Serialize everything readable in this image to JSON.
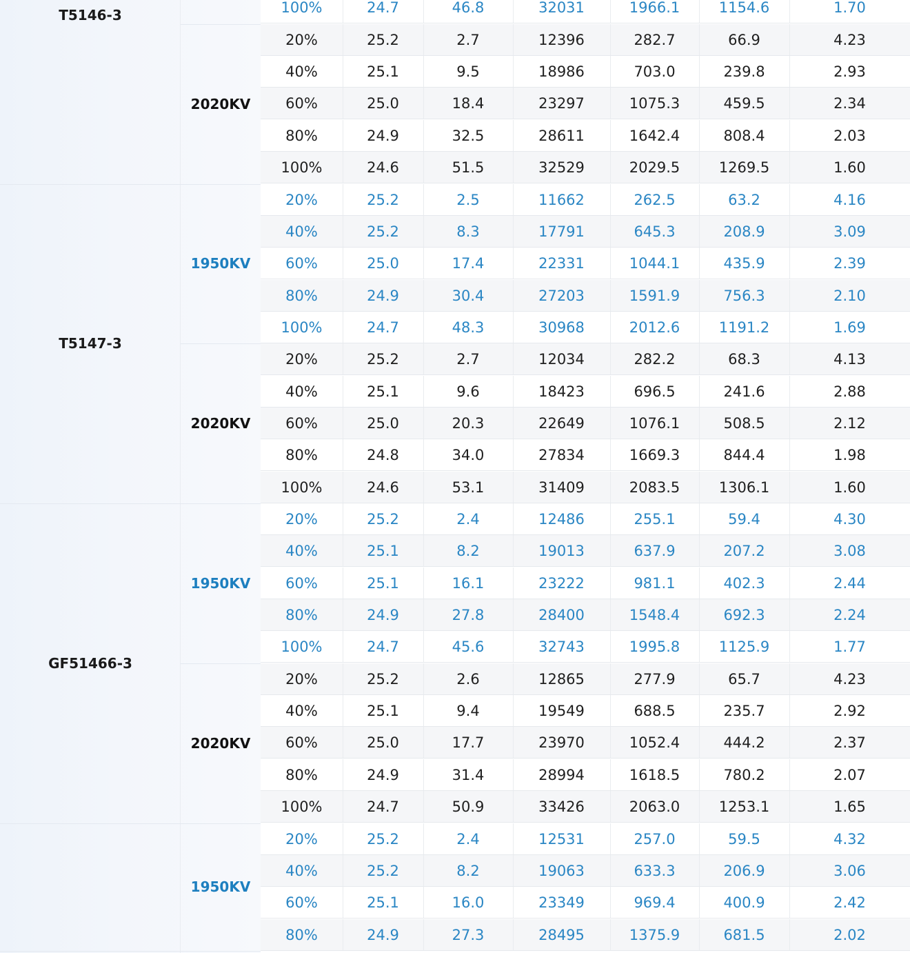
{
  "groups": [
    {
      "model": "T5146-3",
      "sections": [
        {
          "voltage": "",
          "color": "blue",
          "rows": [
            [
              "100%",
              "24.7",
              "46.8",
              "32031",
              "1966.1",
              "1154.6",
              "1.70"
            ]
          ]
        },
        {
          "voltage": "2020KV",
          "color": "black",
          "rows": [
            [
              "20%",
              "25.2",
              "2.7",
              "12396",
              "282.7",
              "66.9",
              "4.23"
            ],
            [
              "40%",
              "25.1",
              "9.5",
              "18986",
              "703.0",
              "239.8",
              "2.93"
            ],
            [
              "60%",
              "25.0",
              "18.4",
              "23297",
              "1075.3",
              "459.5",
              "2.34"
            ],
            [
              "80%",
              "24.9",
              "32.5",
              "28611",
              "1642.4",
              "808.4",
              "2.03"
            ],
            [
              "100%",
              "24.6",
              "51.5",
              "32529",
              "2029.5",
              "1269.5",
              "1.60"
            ]
          ]
        }
      ]
    },
    {
      "model": "T5147-3",
      "sections": [
        {
          "voltage": "1950KV",
          "color": "blue",
          "rows": [
            [
              "20%",
              "25.2",
              "2.5",
              "11662",
              "262.5",
              "63.2",
              "4.16"
            ],
            [
              "40%",
              "25.2",
              "8.3",
              "17791",
              "645.3",
              "208.9",
              "3.09"
            ],
            [
              "60%",
              "25.0",
              "17.4",
              "22331",
              "1044.1",
              "435.9",
              "2.39"
            ],
            [
              "80%",
              "24.9",
              "30.4",
              "27203",
              "1591.9",
              "756.3",
              "2.10"
            ],
            [
              "100%",
              "24.7",
              "48.3",
              "30968",
              "2012.6",
              "1191.2",
              "1.69"
            ]
          ]
        },
        {
          "voltage": "2020KV",
          "color": "black",
          "rows": [
            [
              "20%",
              "25.2",
              "2.7",
              "12034",
              "282.2",
              "68.3",
              "4.13"
            ],
            [
              "40%",
              "25.1",
              "9.6",
              "18423",
              "696.5",
              "241.6",
              "2.88"
            ],
            [
              "60%",
              "25.0",
              "20.3",
              "22649",
              "1076.1",
              "508.5",
              "2.12"
            ],
            [
              "80%",
              "24.8",
              "34.0",
              "27834",
              "1669.3",
              "844.4",
              "1.98"
            ],
            [
              "100%",
              "24.6",
              "53.1",
              "31409",
              "2083.5",
              "1306.1",
              "1.60"
            ]
          ]
        }
      ]
    },
    {
      "model": "GF51466-3",
      "sections": [
        {
          "voltage": "1950KV",
          "color": "blue",
          "rows": [
            [
              "20%",
              "25.2",
              "2.4",
              "12486",
              "255.1",
              "59.4",
              "4.30"
            ],
            [
              "40%",
              "25.1",
              "8.2",
              "19013",
              "637.9",
              "207.2",
              "3.08"
            ],
            [
              "60%",
              "25.1",
              "16.1",
              "23222",
              "981.1",
              "402.3",
              "2.44"
            ],
            [
              "80%",
              "24.9",
              "27.8",
              "28400",
              "1548.4",
              "692.3",
              "2.24"
            ],
            [
              "100%",
              "24.7",
              "45.6",
              "32743",
              "1995.8",
              "1125.9",
              "1.77"
            ]
          ]
        },
        {
          "voltage": "2020KV",
          "color": "black",
          "rows": [
            [
              "20%",
              "25.2",
              "2.6",
              "12865",
              "277.9",
              "65.7",
              "4.23"
            ],
            [
              "40%",
              "25.1",
              "9.4",
              "19549",
              "688.5",
              "235.7",
              "2.92"
            ],
            [
              "60%",
              "25.0",
              "17.7",
              "23970",
              "1052.4",
              "444.2",
              "2.37"
            ],
            [
              "80%",
              "24.9",
              "31.4",
              "28994",
              "1618.5",
              "780.2",
              "2.07"
            ],
            [
              "100%",
              "24.7",
              "50.9",
              "33426",
              "2063.0",
              "1253.1",
              "1.65"
            ]
          ]
        }
      ]
    },
    {
      "model": "",
      "sections": [
        {
          "voltage": "1950KV",
          "color": "blue",
          "rows": [
            [
              "20%",
              "25.2",
              "2.4",
              "12531",
              "257.0",
              "59.5",
              "4.32"
            ],
            [
              "40%",
              "25.2",
              "8.2",
              "19063",
              "633.3",
              "206.9",
              "3.06"
            ],
            [
              "60%",
              "25.1",
              "16.0",
              "23349",
              "969.4",
              "400.9",
              "2.42"
            ],
            [
              "80%",
              "24.9",
              "27.3",
              "28495",
              "1375.9",
              "681.5",
              "2.02"
            ]
          ]
        }
      ]
    }
  ]
}
